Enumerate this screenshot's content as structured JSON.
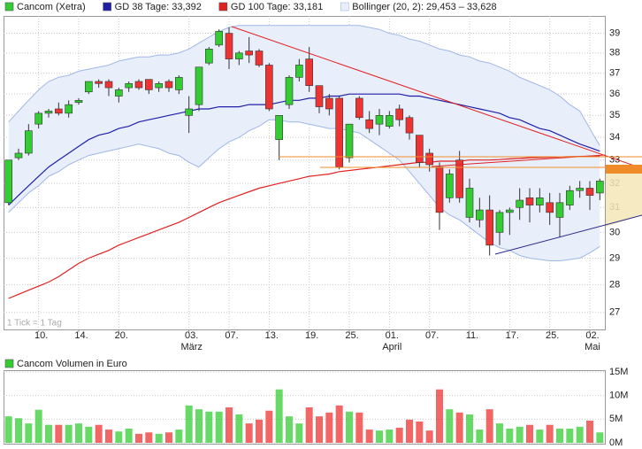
{
  "chart_data": [
    {
      "type": "candlestick",
      "yscale": "log",
      "grid": true,
      "note": "1 Tick = 1 Tag",
      "ylim": [
        26.4,
        39.9
      ],
      "yticks": [
        27,
        28,
        29,
        30,
        31,
        32,
        33,
        34,
        35,
        36,
        37,
        38,
        39
      ],
      "categories": [
        null,
        null,
        null,
        "10.",
        null,
        null,
        null,
        "14.",
        null,
        null,
        null,
        "20.",
        null,
        null,
        null,
        null,
        null,
        null,
        "03.",
        null,
        null,
        null,
        "07.",
        null,
        null,
        null,
        "13.",
        null,
        null,
        null,
        "19.",
        null,
        null,
        null,
        "25.",
        null,
        null,
        null,
        "01.",
        null,
        null,
        null,
        "07.",
        null,
        null,
        null,
        "11.",
        null,
        null,
        null,
        "17.",
        null,
        null,
        null,
        "25.",
        null,
        null,
        null,
        "02.",
        null
      ],
      "month_labels": [
        {
          "label": "März",
          "at": 18
        },
        {
          "label": "April",
          "at": 38
        },
        {
          "label": "Mai",
          "at": 58
        }
      ],
      "series": [
        {
          "name": "Cancom (Xetra)",
          "up_color": "#33cc33",
          "down_color": "#ee3333",
          "open": [
            31.2,
            33.1,
            33.3,
            34.6,
            35.1,
            35.3,
            35.1,
            35.6,
            36.1,
            36.6,
            36.6,
            35.9,
            36.3,
            36.6,
            36.7,
            36.3,
            36.6,
            36.2,
            35.0,
            35.5,
            37.5,
            38.4,
            39.0,
            37.7,
            38.1,
            38.1,
            37.4,
            33.9,
            35.5,
            36.8,
            37.7,
            36.4,
            35.8,
            35.8,
            33.1,
            35.8,
            34.8,
            34.6,
            34.5,
            35.3,
            34.9,
            34.1,
            33.3,
            32.7,
            31.4,
            33.0,
            30.6,
            30.5,
            30.9,
            30.0,
            30.8,
            31.0,
            31.4,
            31.1,
            31.2,
            30.6,
            31.1,
            31.7,
            31.8,
            31.6
          ],
          "high": [
            33.0,
            33.5,
            34.6,
            35.2,
            35.3,
            35.6,
            35.7,
            35.8,
            36.6,
            36.7,
            36.7,
            36.3,
            36.6,
            36.7,
            36.7,
            36.6,
            36.7,
            36.9,
            35.9,
            37.3,
            38.3,
            39.2,
            39.3,
            38.1,
            38.8,
            38.2,
            37.5,
            35.0,
            36.9,
            37.7,
            38.3,
            36.4,
            36.0,
            35.9,
            34.6,
            35.9,
            35.2,
            35.3,
            35.2,
            35.5,
            35.0,
            34.1,
            33.5,
            32.9,
            32.6,
            33.4,
            32.2,
            31.4,
            31.5,
            30.9,
            31.0,
            31.8,
            31.8,
            31.8,
            31.6,
            31.6,
            31.9,
            32.1,
            32.1,
            32.2
          ],
          "low": [
            31.1,
            33.0,
            33.2,
            34.4,
            34.9,
            35.0,
            34.9,
            35.5,
            36.0,
            36.3,
            35.9,
            35.6,
            36.1,
            36.2,
            36.0,
            36.1,
            36.1,
            36.0,
            34.2,
            35.2,
            37.4,
            38.3,
            37.2,
            37.4,
            37.5,
            37.3,
            35.2,
            33.0,
            35.3,
            36.6,
            36.1,
            35.1,
            35.0,
            32.6,
            32.9,
            34.8,
            34.2,
            34.1,
            34.4,
            34.5,
            33.9,
            32.7,
            32.5,
            30.1,
            31.2,
            31.2,
            30.4,
            30.2,
            29.1,
            29.5,
            29.9,
            30.5,
            30.4,
            30.8,
            30.3,
            29.8,
            30.9,
            31.4,
            30.9,
            31.3
          ],
          "close": [
            33.0,
            33.3,
            34.3,
            35.1,
            35.2,
            35.1,
            35.5,
            35.7,
            36.6,
            36.5,
            36.3,
            36.2,
            36.5,
            36.3,
            36.2,
            36.5,
            36.3,
            36.8,
            35.3,
            37.3,
            38.2,
            39.1,
            37.7,
            38.0,
            37.9,
            37.4,
            35.3,
            35.0,
            36.8,
            37.4,
            36.4,
            35.4,
            35.3,
            32.7,
            34.6,
            34.9,
            34.4,
            35.0,
            35.0,
            34.8,
            34.2,
            32.9,
            32.8,
            30.8,
            32.4,
            31.4,
            31.8,
            30.9,
            29.5,
            30.8,
            30.9,
            31.3,
            31.1,
            31.4,
            30.8,
            31.2,
            31.7,
            31.8,
            31.5,
            32.1
          ]
        },
        {
          "name": "GD 38 Tage: 33,392",
          "color": "#1f1fa8",
          "values": [
            31.1,
            31.5,
            31.9,
            32.3,
            32.7,
            33.0,
            33.3,
            33.6,
            33.9,
            34.1,
            34.2,
            34.4,
            34.5,
            34.7,
            34.8,
            34.9,
            35.0,
            35.1,
            35.2,
            35.3,
            35.3,
            35.4,
            35.4,
            35.4,
            35.5,
            35.5,
            35.5,
            35.6,
            35.7,
            35.7,
            35.8,
            35.8,
            35.9,
            35.9,
            36.0,
            36.0,
            36.0,
            36.0,
            36.0,
            36.0,
            35.9,
            35.9,
            35.8,
            35.7,
            35.6,
            35.5,
            35.4,
            35.3,
            35.2,
            35.1,
            34.9,
            34.8,
            34.6,
            34.4,
            34.3,
            34.1,
            33.9,
            33.7,
            33.55,
            33.39
          ]
        },
        {
          "name": "GD 100 Tage: 33,181",
          "color": "#e02020",
          "values": [
            27.5,
            27.65,
            27.8,
            27.95,
            28.1,
            28.3,
            28.55,
            28.8,
            29.0,
            29.15,
            29.3,
            29.5,
            29.65,
            29.8,
            29.95,
            30.1,
            30.25,
            30.4,
            30.6,
            30.8,
            31.0,
            31.2,
            31.35,
            31.5,
            31.65,
            31.8,
            31.9,
            32.0,
            32.1,
            32.2,
            32.3,
            32.35,
            32.4,
            32.5,
            32.55,
            32.6,
            32.65,
            32.7,
            32.75,
            32.8,
            32.85,
            32.9,
            32.9,
            32.95,
            32.95,
            32.95,
            33.0,
            33.0,
            33.0,
            33.02,
            33.05,
            33.07,
            33.1,
            33.11,
            33.12,
            33.14,
            33.15,
            33.16,
            33.17,
            33.18
          ]
        },
        {
          "name": "Bollinger (20, 2): 29,453 – 33,628",
          "color": "#9fb6e6",
          "fill": "#e8effb",
          "upper": [
            34.7,
            35.2,
            35.7,
            36.2,
            36.6,
            36.8,
            36.9,
            37.1,
            37.2,
            37.3,
            37.4,
            37.6,
            37.7,
            37.8,
            37.8,
            37.9,
            37.9,
            38.0,
            38.2,
            38.5,
            38.8,
            39.1,
            39.3,
            39.4,
            39.4,
            39.4,
            39.4,
            39.4,
            39.4,
            39.4,
            39.4,
            39.4,
            39.4,
            39.4,
            39.4,
            39.4,
            39.3,
            39.2,
            39.0,
            38.9,
            38.7,
            38.6,
            38.4,
            38.2,
            38.1,
            37.9,
            37.8,
            37.6,
            37.5,
            37.3,
            37.1,
            36.8,
            36.6,
            36.4,
            36.2,
            35.9,
            35.5,
            35.2,
            34.4,
            33.63
          ],
          "lower": [
            30.8,
            31.2,
            31.6,
            31.9,
            32.3,
            32.5,
            32.8,
            33.0,
            33.2,
            33.3,
            33.4,
            33.5,
            33.6,
            33.7,
            33.6,
            33.5,
            33.3,
            33.2,
            32.9,
            32.7,
            33.1,
            33.5,
            33.8,
            34.0,
            34.3,
            34.5,
            34.8,
            34.8,
            34.7,
            34.7,
            34.6,
            34.5,
            34.4,
            34.4,
            34.3,
            34.2,
            33.9,
            33.6,
            33.3,
            33.0,
            32.5,
            32.0,
            31.5,
            31.0,
            30.7,
            30.5,
            30.2,
            29.9,
            29.6,
            29.4,
            29.3,
            29.1,
            29.0,
            28.95,
            28.9,
            28.9,
            28.95,
            29.0,
            29.2,
            29.45
          ]
        }
      ]
    },
    {
      "type": "bar",
      "grid": true,
      "ylim": [
        0,
        15
      ],
      "yticks": [
        {
          "value": 0,
          "label": "0M"
        },
        {
          "value": 5,
          "label": "5M"
        },
        {
          "value": 10,
          "label": "10M"
        },
        {
          "value": 15,
          "label": "15M"
        }
      ],
      "series": [
        {
          "name": "Cancom Volumen in Euro",
          "color": "#33cc33",
          "values": [
            5.6,
            5.2,
            4.1,
            7.0,
            3.8,
            3.8,
            3.8,
            4.1,
            3.4,
            3.8,
            2.8,
            2.4,
            3.0,
            1.9,
            2.2,
            1.9,
            2.2,
            2.8,
            7.9,
            7.1,
            6.6,
            6.6,
            7.5,
            6.0,
            4.1,
            4.9,
            6.8,
            11.3,
            5.6,
            4.1,
            7.5,
            5.6,
            6.4,
            7.9,
            6.6,
            6.4,
            2.8,
            2.6,
            2.8,
            3.2,
            4.9,
            4.5,
            2.6,
            11.3,
            7.1,
            6.4,
            6.0,
            2.8,
            7.1,
            4.1,
            3.0,
            3.4,
            3.8,
            2.8,
            3.8,
            3.0,
            3.0,
            3.4,
            4.7,
            2.2
          ]
        }
      ]
    }
  ]
}
